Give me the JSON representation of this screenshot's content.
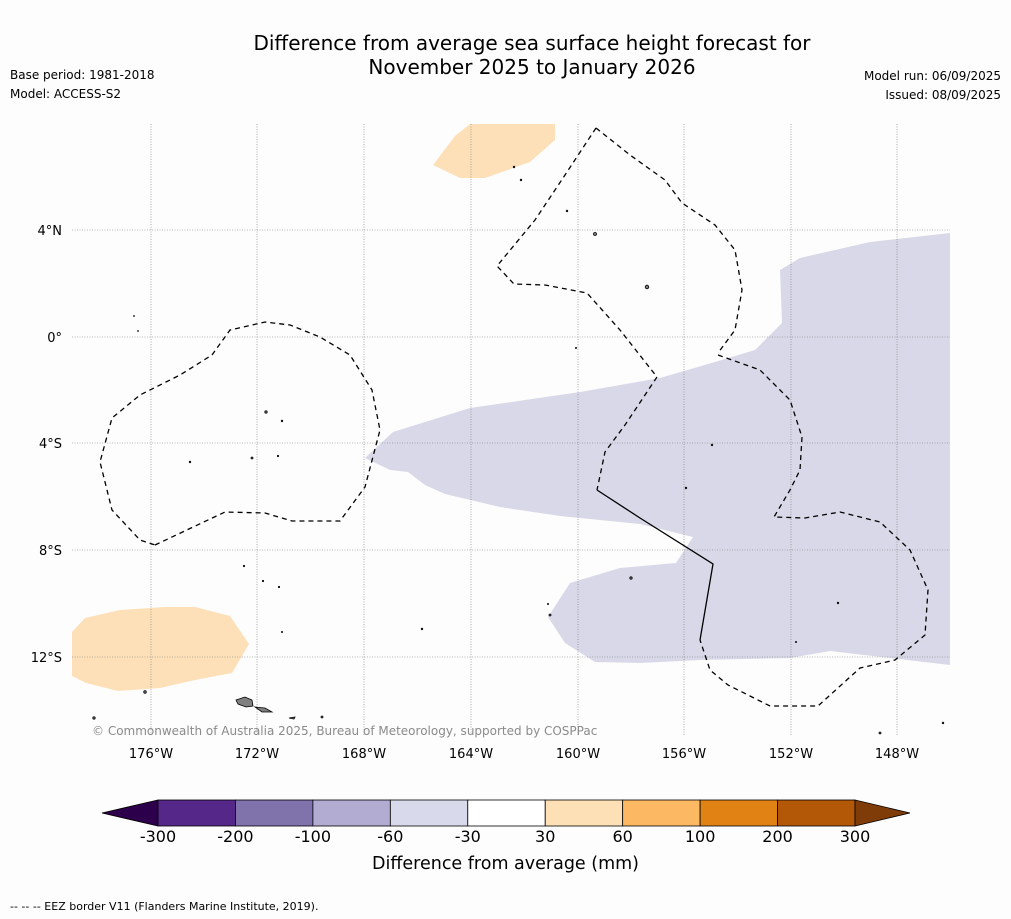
{
  "title_line1": "Difference from average sea surface height forecast for",
  "title_line2": "November 2025 to January 2026",
  "info_left": [
    "Base period: 1981-2018",
    "Model: ACCESS-S2"
  ],
  "info_right": [
    "Model run: 06/09/2025",
    "Issued: 08/09/2025"
  ],
  "map": {
    "lat_ticks": [
      "4°N",
      "0°",
      "4°S",
      "8°S",
      "12°S"
    ],
    "lon_ticks": [
      "176°W",
      "172°W",
      "168°W",
      "164°W",
      "160°W",
      "156°W",
      "152°W",
      "148°W"
    ],
    "copyright": "© Commonwealth of Australia 2025, Bureau of Meteorology, supported by COSPPac",
    "fill_colors": {
      "light_purple": "#d8d8e8",
      "light_orange": "#fde0b8",
      "land": "#808080"
    }
  },
  "colorbar": {
    "ticks": [
      "-300",
      "-200",
      "-100",
      "-60",
      "-30",
      "30",
      "60",
      "100",
      "200",
      "300"
    ],
    "colors": [
      "#2d004b",
      "#542788",
      "#8073ac",
      "#b2abd2",
      "#d8daeb",
      "#ffffff",
      "#fee0b6",
      "#fdb863",
      "#e08214",
      "#b35806",
      "#7f3b08"
    ],
    "label": "Difference from average (mm)"
  },
  "footer": "--  --  -- EEZ border V11 (Flanders Marine Institute, 2019)."
}
